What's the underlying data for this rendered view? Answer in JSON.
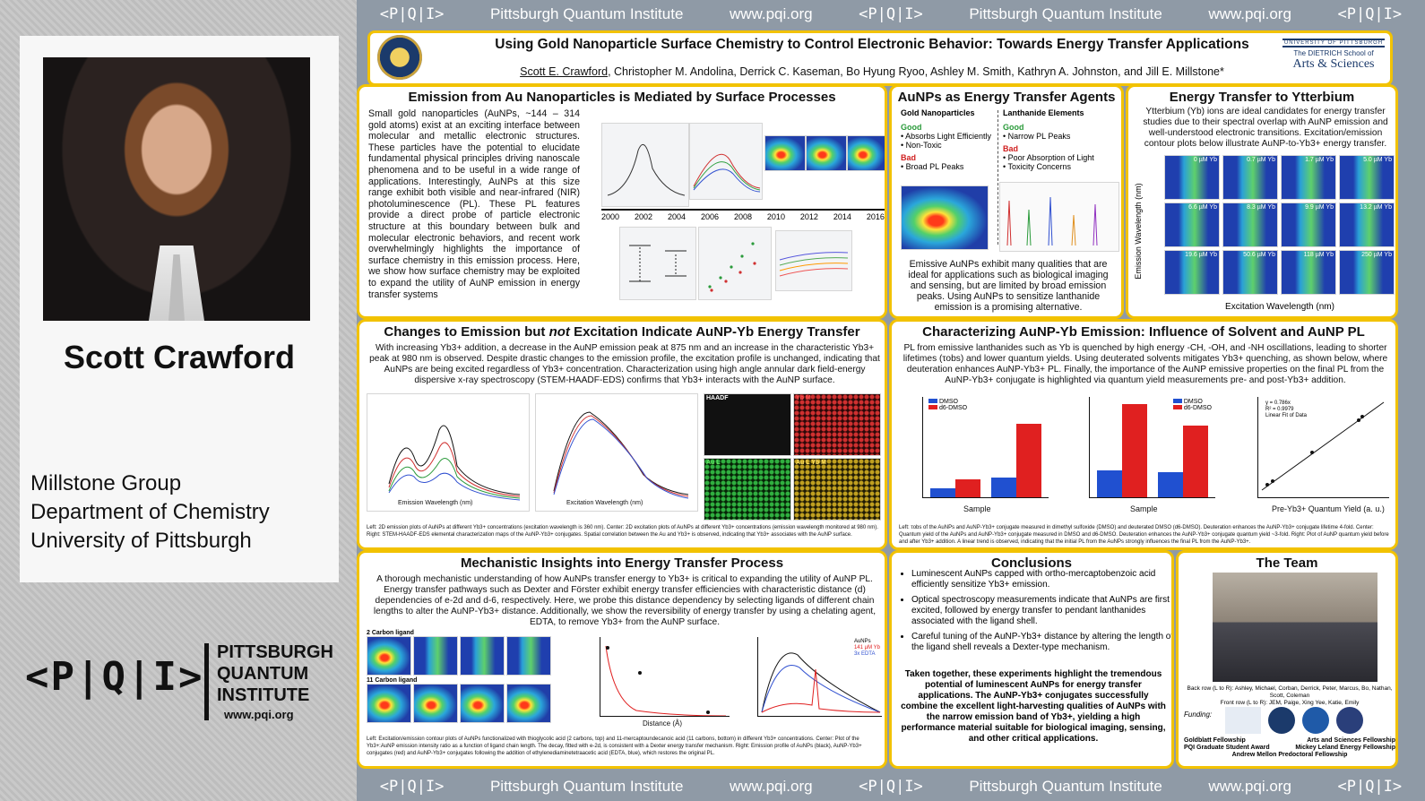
{
  "left": {
    "name": "Scott Crawford",
    "affiliation": [
      "Millstone Group",
      "Department of Chemistry",
      "University of Pittsburgh"
    ],
    "logo": {
      "mark": "<P|Q|I>",
      "words": [
        "PITTSBURGH",
        "QUANTUM",
        "INSTITUTE"
      ],
      "url": "www.pqi.org"
    }
  },
  "banner": {
    "mark": "<P|Q|I>",
    "name": "Pittsburgh Quantum Institute",
    "url": "www.pqi.org"
  },
  "poster": {
    "title": "Using Gold Nanoparticle Surface Chemistry to Control Electronic Behavior: Towards Energy Transfer Applications",
    "first_author": "Scott E. Crawford",
    "other_authors": ", Christopher M. Andolina, Derrick C. Kaseman, Bo Hyung Ryoo, Ashley M. Smith, Kathryn A. Johnston, and Jill E. Millstone*",
    "school": {
      "university": "UNIVERSITY OF PITTSBURGH",
      "school": "The DIETRICH School of",
      "arts": "Arts & Sciences"
    }
  },
  "panels": {
    "emission": {
      "title": "Emission from Au Nanoparticles is Mediated by Surface Processes",
      "text": "Small gold nanoparticles (AuNPs, ~144 – 314 gold atoms) exist at an exciting interface between molecular and metallic electronic structures. These particles have the potential to elucidate fundamental physical principles driving nanoscale phenomena and to be useful in a wide range of applications. Interestingly, AuNPs at this size range exhibit both visible and near-infrared (NIR) photoluminescence (PL). These PL features provide a direct probe of particle electronic structure at this boundary between bulk and molecular electronic behaviors, and recent work overwhelmingly highlights the importance of surface chemistry in this emission process. Here, we show how surface chemistry may be exploited to expand the utility of AuNP emission in energy transfer systems",
      "timeline": [
        "2000",
        "2002",
        "2004",
        "2006",
        "2008",
        "2010",
        "2012",
        "2014",
        "2016"
      ]
    },
    "agents": {
      "title": "AuNPs as Energy Transfer Agents",
      "col1": "Gold Nanoparticles",
      "col2": "Lanthanide Elements",
      "good": "Good",
      "bad": "Bad",
      "au_good": [
        "Absorbs Light Efficiently",
        "Non-Toxic"
      ],
      "au_bad": [
        "Broad PL Peaks"
      ],
      "ln_good": [
        "Narrow PL Peaks"
      ],
      "ln_bad": [
        "Poor Absorption of Light",
        "Toxicity Concerns"
      ],
      "text": "Emissive AuNPs exhibit many qualities that are ideal for applications such as biological imaging and sensing, but are limited by broad emission peaks. Using AuNPs to sensitize lanthanide emission is a promising alternative."
    },
    "ytterbium": {
      "title": "Energy Transfer to Ytterbium",
      "text": "Ytterbium (Yb) ions are ideal candidates for energy transfer studies due to their spectral overlap with AuNP emission and well-understood electronic transitions. Excitation/emission contour plots below illustrate AuNP-to-Yb3+ energy transfer.",
      "tiles": [
        "0 µM Yb",
        "0.7 µM Yb",
        "1.7 µM Yb",
        "5.0 µM Yb",
        "6.6 µM Yb",
        "8.3 µM Yb",
        "9.9 µM Yb",
        "13.2 µM Yb",
        "19.6 µM Yb",
        "50.6 µM Yb",
        "118 µM Yb",
        "250 µM Yb"
      ],
      "ylabel": "Emission Wavelength (nm)",
      "xlabel": "Excitation Wavelength (nm)"
    },
    "changes": {
      "title_a": "Changes to Emission but ",
      "title_em": "not",
      "title_b": " Excitation Indicate AuNP-Yb Energy Transfer",
      "text": "With increasing Yb3+ addition, a decrease in the AuNP emission peak at 875 nm and an increase in the characteristic Yb3+ peak at 980 nm is observed. Despite drastic changes to the emission profile, the excitation profile is unchanged, indicating that AuNPs are being excited regardless of Yb3+ concentration. Characterization using high angle annular dark field-energy dispersive x-ray spectroscopy (STEM-HAADF-EDS) confirms that Yb3+ interacts with the AuNP surface.",
      "x1": "Emission Wavelength (nm)",
      "x2": "Excitation Wavelength (nm)",
      "y1": "Intensity (a. u.)",
      "y2": "Normalized Intensity (a. u.)",
      "maps": [
        "HAADF",
        "Yb M",
        "Au L",
        "Au L Yb M"
      ],
      "caption": "Left: 2D emission plots of AuNPs at different Yb3+ concentrations (excitation wavelength is 360 nm). Center: 2D excitation plots of AuNPs at different Yb3+ concentrations (emission wavelength monitored at 980 nm). Right: STEM-HAADF-EDS elemental characterization maps of the AuNP-Yb3+ conjugates. Spatial correlation between the Au and Yb3+ is observed, indicating that Yb3+ associates with the AuNP surface."
    },
    "characterizing": {
      "title": "Characterizing AuNP-Yb Emission:  Influence of Solvent and AuNP PL",
      "text": "PL from emissive lanthanides such as Yb is quenched by high energy -CH, -OH, and -NH oscillations, leading to shorter lifetimes (τobs) and lower quantum yields. Using deuterated solvents mitigates Yb3+ quenching, as shown below, where deuteration enhances AuNP-Yb3+ PL. Finally, the importance of the AuNP emissive properties on the final PL from the AuNP-Yb3+ conjugate is highlighted via quantum yield measurements pre- and post-Yb3+ addition.",
      "legend": [
        "DMSO",
        "d6-DMSO"
      ],
      "xlabel": "Sample",
      "y1": "τobs (µs)",
      "y2": "Quantum Yield (a. u.)",
      "y3": "Post-Yb3+ Quantum Yield (a. u.)",
      "x3": "Pre-Yb3+ Quantum Yield (a. u.)",
      "fit": [
        "y = 0.786x",
        "R² = 0.9979",
        "Linear Fit of Data"
      ],
      "caption": "Left: τobs of the AuNPs and AuNP-Yb3+ conjugate measured in dimethyl sulfoxide (DMSO) and deuterated DMSO (d6-DMSO). Deuteration enhances the AuNP-Yb3+ conjugate lifetime 4-fold. Center: Quantum yield of the AuNPs and AuNP-Yb3+ conjugate measured in DMSO and d6-DMSO. Deuteration enhances the AuNP-Yb3+ conjugate quantum yield ~3-fold. Right: Plot of AuNP quantum yield before and after Yb3+ addition. A linear trend is observed, indicating that the initial PL from the AuNPs strongly influences the final PL from the AuNP-Yb3+."
    },
    "mechanistic": {
      "title": "Mechanistic Insights into Energy Transfer Process",
      "text": "A thorough mechanistic understanding of how AuNPs transfer energy to Yb3+ is critical to expanding the utility of AuNP PL. Energy transfer pathways such as Dexter and Förster exhibit energy transfer efficiencies with characteristic distance (d) dependencies of e-2d and d-6, respectively. Here, we probe this distance dependency by selecting ligands of different chain lengths to alter the AuNP-Yb3+ distance. Additionally, we show the reversibility of energy transfer by using a chelating agent, EDTA, to remove Yb3+ from the AuNP surface.",
      "row1": "2 Carbon ligand",
      "row2": "11 Carbon ligand",
      "xdist": "Distance (Å)",
      "legend": [
        "AuNPs",
        "141 µM Yb",
        "3x EDTA"
      ],
      "caption": "Left: Excitation/emission contour plots of AuNPs functionalized with thioglycolic acid (2 carbons, top) and 11-mercaptoundecanoic acid (11 carbons, bottom) in different Yb3+ concentrations. Center: Plot of the Yb3+:AuNP emission intensity ratio as a function of ligand chain length. The decay, fitted with e-2d, is consistent with a Dexter energy transfer mechanism. Right: Emission profile of AuNPs (black), AuNP-Yb3+ conjugates (red) and AuNP-Yb3+ conjugates following the addition of ethylenediaminetetraacetic acid (EDTA, blue), which restores the original PL."
    },
    "conclusions": {
      "title": "Conclusions",
      "bullets": [
        "Luminescent AuNPs capped with ortho-mercaptobenzoic acid efficiently sensitize Yb3+ emission.",
        "Optical spectroscopy measurements indicate that AuNPs are first excited, followed by energy transfer to pendant lanthanides associated with the ligand shell.",
        "Careful tuning of the AuNP-Yb3+ distance by altering the length of the ligand shell reveals a Dexter-type mechanism."
      ],
      "summary": "Taken together, these experiments highlight the tremendous potential of luminescent AuNPs for energy transfer applications. The AuNP-Yb3+ conjugates successfully combine the excellent light-harvesting qualities of AuNPs with the narrow emission band of Yb3+, yielding a high performance material suitable for biological imaging, sensing, and other critical applications."
    },
    "team": {
      "title": "The Team",
      "back_row": "Back row (L to R): Ashley, Michael, Corban, Derrick, Peter, Marcus, Bo, Nathan, Scott, Coleman",
      "front_row": "Front row (L to R): JEM, Paige, Xing Yee, Katie, Emily",
      "funding": "Funding:",
      "awards": [
        "Goldblatt Fellowship",
        "PQI Graduate Student Award",
        "Arts and Sciences Fellowship",
        "Mickey Leland Energy Fellowship",
        "Andrew Mellon Predoctoral Fellowship"
      ]
    }
  },
  "colors": {
    "accent": "#f2c200",
    "banner": "#8f9aa6",
    "red": "#e02020",
    "blue": "#2050d0"
  }
}
